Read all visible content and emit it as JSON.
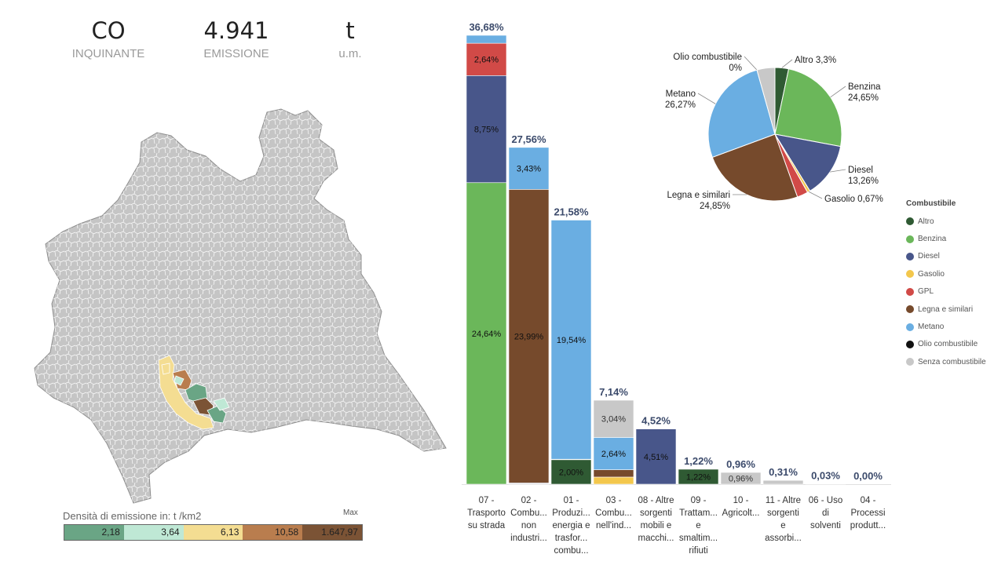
{
  "kpi": {
    "pollutant": {
      "value": "CO",
      "label": "INQUINANTE"
    },
    "emission": {
      "value": "4.941",
      "label": "EMISSIONE"
    },
    "unit": {
      "value": "t",
      "label": "u.m."
    }
  },
  "colors": {
    "Altro": "#2f5a33",
    "Benzina": "#6bb75a",
    "Diesel": "#48568a",
    "Gasolio": "#f3c74c",
    "GPL": "#d14a47",
    "Legna e similari": "#764a2c",
    "Metano": "#6aaee2",
    "Olio combustibile": "#111111",
    "Senza combustibile": "#c8c8c8"
  },
  "map_legend": {
    "title": "Densità di emissione in:  t /km2",
    "max_label": "Max",
    "bins": [
      {
        "label": "2,18",
        "color": "#6aa585"
      },
      {
        "label": "3,64",
        "color": "#bfe8d5"
      },
      {
        "label": "6,13",
        "color": "#f4dd92"
      },
      {
        "label": "10,58",
        "color": "#b97d4e"
      },
      {
        "label": "1.647,97",
        "color": "#7b5335"
      }
    ]
  },
  "fuel_legend": {
    "title": "Combustibile",
    "items": [
      "Altro",
      "Benzina",
      "Diesel",
      "Gasolio",
      "GPL",
      "Legna e similari",
      "Metano",
      "Olio combustibile",
      "Senza combustibile"
    ]
  },
  "chart_data": [
    {
      "type": "bar",
      "stacked": true,
      "unit": "%",
      "categories": [
        [
          "07 -",
          "Trasporto",
          "su strada"
        ],
        [
          "02 -",
          "Combu...",
          "non",
          "industri..."
        ],
        [
          "01 -",
          "Produzi...",
          "energia e",
          "trasfor...",
          "combu..."
        ],
        [
          "03 -",
          "Combu...",
          "nell'ind..."
        ],
        [
          "08 - Altre",
          "sorgenti",
          "mobili e",
          "macchi..."
        ],
        [
          "09 -",
          "Trattam...",
          "e",
          "smaltim...",
          "rifiuti"
        ],
        [
          "10 -",
          "Agricolt..."
        ],
        [
          "11 - Altre",
          "sorgenti",
          "e",
          "assorbi..."
        ],
        [
          "06 - Uso",
          "di",
          "solventi"
        ],
        [
          "04 -",
          "Processi",
          "produtt..."
        ]
      ],
      "totals": [
        36.68,
        27.56,
        21.58,
        7.14,
        4.52,
        1.22,
        0.96,
        0.31,
        0.03,
        0.0
      ],
      "total_labels": [
        "36,68%",
        "27,56%",
        "21,58%",
        "7,14%",
        "4,52%",
        "1,22%",
        "0,96%",
        "0,31%",
        "0,03%",
        "0,00%"
      ],
      "stacks": [
        [
          {
            "fuel": "Benzina",
            "value": 24.64,
            "label": "24,64%"
          },
          {
            "fuel": "Diesel",
            "value": 8.75,
            "label": "8,75%"
          },
          {
            "fuel": "GPL",
            "value": 2.64,
            "label": "2,64%"
          },
          {
            "fuel": "Metano",
            "value": 0.65,
            "label": ""
          }
        ],
        [
          {
            "fuel": "Gasolio",
            "value": 0.04,
            "label": ""
          },
          {
            "fuel": "Diesel",
            "value": 0.06,
            "label": ""
          },
          {
            "fuel": "Legna e similari",
            "value": 23.99,
            "label": "23,99%"
          },
          {
            "fuel": "Metano",
            "value": 3.43,
            "label": "3,43%"
          }
        ],
        [
          {
            "fuel": "Altro",
            "value": 2.0,
            "label": "2,00%"
          },
          {
            "fuel": "Legna e similari",
            "value": 0.04,
            "label": ""
          },
          {
            "fuel": "Metano",
            "value": 19.54,
            "label": "19,54%"
          }
        ],
        [
          {
            "fuel": "Gasolio",
            "value": 0.58,
            "label": ""
          },
          {
            "fuel": "Legna e similari",
            "value": 0.6,
            "label": ""
          },
          {
            "fuel": "Metano",
            "value": 2.64,
            "label": "2,64%"
          },
          {
            "fuel": "Senza combustibile",
            "value": 3.04,
            "label": "3,04%"
          }
        ],
        [
          {
            "fuel": "Diesel",
            "value": 4.51,
            "label": "4,51%"
          }
        ],
        [
          {
            "fuel": "Altro",
            "value": 1.22,
            "label": "1,22%"
          }
        ],
        [
          {
            "fuel": "Senza combustibile",
            "value": 0.96,
            "label": "0,96%"
          }
        ],
        [
          {
            "fuel": "Senza combustibile",
            "value": 0.31,
            "label": ""
          }
        ],
        [
          {
            "fuel": "Senza combustibile",
            "value": 0.03,
            "label": ""
          }
        ],
        [
          {
            "fuel": "Senza combustibile",
            "value": 0.0,
            "label": ""
          }
        ]
      ],
      "ylim": [
        0,
        36.68
      ]
    },
    {
      "type": "pie",
      "slices": [
        {
          "fuel": "Altro",
          "value": 3.3,
          "label": "Altro 3,3%"
        },
        {
          "fuel": "Benzina",
          "value": 24.65,
          "label": "Benzina\n24,65%"
        },
        {
          "fuel": "Diesel",
          "value": 13.26,
          "label": "Diesel\n13,26%"
        },
        {
          "fuel": "Gasolio",
          "value": 0.67,
          "label": "Gasolio 0,67%"
        },
        {
          "fuel": "GPL",
          "value": 2.64,
          "label": ""
        },
        {
          "fuel": "Legna e similari",
          "value": 24.85,
          "label": "Legna e similari\n24,85%"
        },
        {
          "fuel": "Metano",
          "value": 26.27,
          "label": "Metano\n26,27%"
        },
        {
          "fuel": "Olio combustibile",
          "value": 0.0,
          "label": "Olio combustibile\n0%"
        },
        {
          "fuel": "Senza combustibile",
          "value": 4.36,
          "label": ""
        }
      ]
    }
  ]
}
